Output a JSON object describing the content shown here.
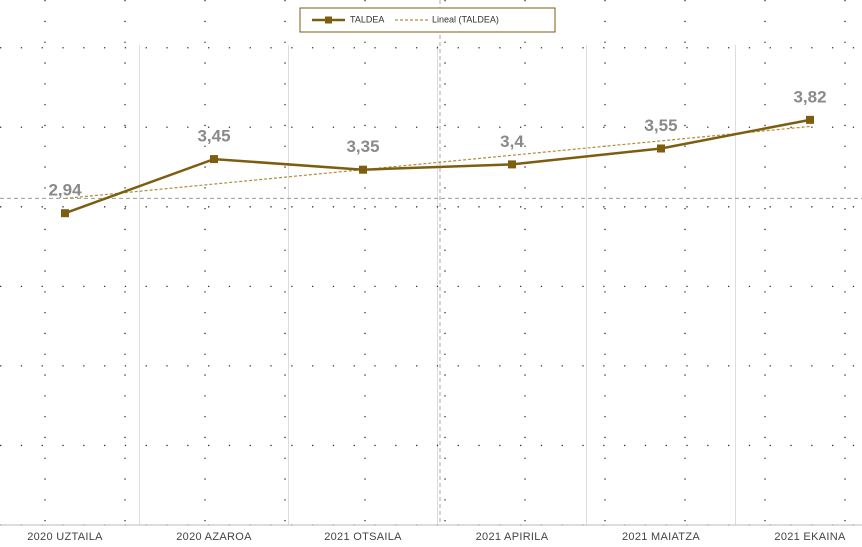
{
  "chart_data": {
    "type": "line",
    "categories": [
      "2020 UZTAILA",
      "2020 AZAROA",
      "2021 OTSAILA",
      "2021 APIRILA",
      "2021 MAIATZA",
      "2021 EKAINA"
    ],
    "series": [
      {
        "name": "TALDEA",
        "color": "#7d5e10",
        "values": [
          2.94,
          3.45,
          3.35,
          3.4,
          3.55,
          3.82
        ],
        "value_labels": [
          "2,94",
          "3,45",
          "3,35",
          "3,4",
          "3,55",
          "3,82"
        ]
      }
    ],
    "trendline": {
      "name": "Lineal (TALDEA)",
      "color": "#b08d3a",
      "type": "linear"
    },
    "reference_line": 3.08,
    "ylim": [
      0,
      4.95
    ],
    "yticks": [
      0,
      0.75,
      1.5,
      2.25,
      3,
      3.75,
      4.5
    ],
    "grid": true,
    "legend": "top"
  }
}
